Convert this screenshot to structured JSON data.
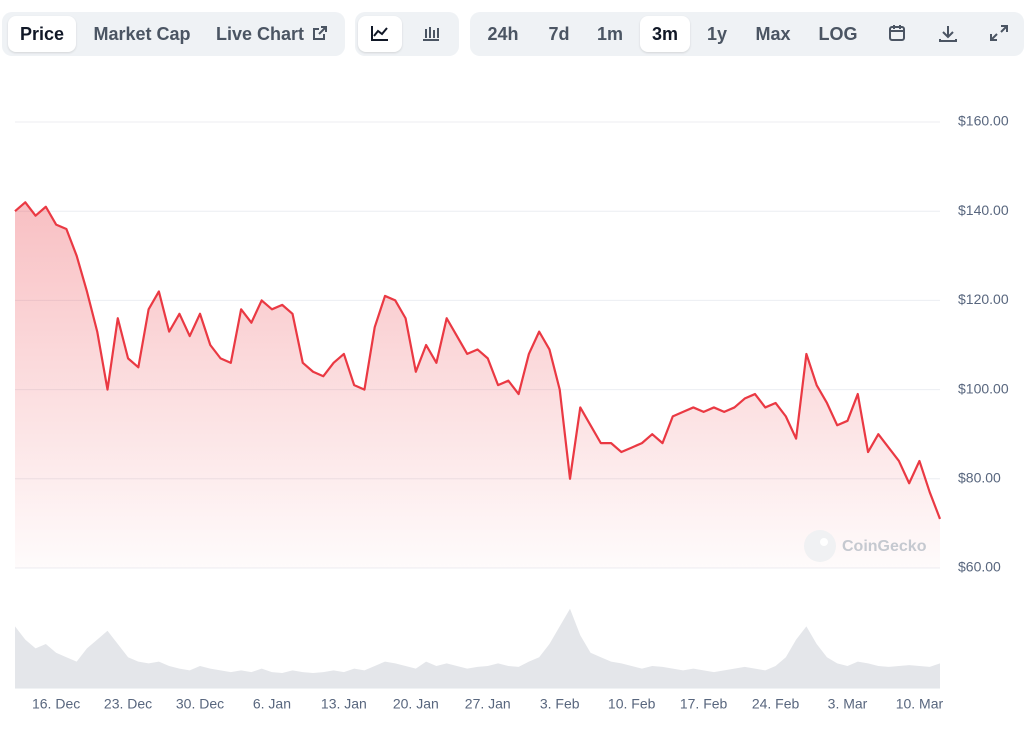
{
  "toolbar": {
    "tabs": [
      "Price",
      "Market Cap",
      "Live Chart"
    ],
    "ranges": [
      "24h",
      "7d",
      "1m",
      "3m",
      "1y",
      "Max",
      "LOG"
    ]
  },
  "watermark": "CoinGecko",
  "chart_data": {
    "type": "line",
    "categories": [
      null,
      null,
      null,
      null,
      "16. Dec",
      null,
      null,
      null,
      null,
      null,
      null,
      "23. Dec",
      null,
      null,
      null,
      null,
      null,
      null,
      "30. Dec",
      null,
      null,
      null,
      null,
      null,
      null,
      "6. Jan",
      null,
      null,
      null,
      null,
      null,
      null,
      "13. Jan",
      null,
      null,
      null,
      null,
      null,
      null,
      "20. Jan",
      null,
      null,
      null,
      null,
      null,
      null,
      "27. Jan",
      null,
      null,
      null,
      null,
      null,
      null,
      "3. Feb",
      null,
      null,
      null,
      null,
      null,
      null,
      "10. Feb",
      null,
      null,
      null,
      null,
      null,
      null,
      "17. Feb",
      null,
      null,
      null,
      null,
      null,
      null,
      "24. Feb",
      null,
      null,
      null,
      null,
      null,
      null,
      "3. Mar",
      null,
      null,
      null,
      null,
      null,
      null,
      "10. Mar",
      null,
      null
    ],
    "series": [
      {
        "name": "Price",
        "color": "#ea3943",
        "values": [
          140,
          142,
          139,
          141,
          137,
          136,
          130,
          122,
          113,
          100,
          116,
          107,
          105,
          118,
          122,
          113,
          117,
          112,
          117,
          110,
          107,
          106,
          118,
          115,
          120,
          118,
          119,
          117,
          106,
          104,
          103,
          106,
          108,
          101,
          100,
          114,
          121,
          120,
          116,
          104,
          110,
          106,
          116,
          112,
          108,
          109,
          107,
          101,
          102,
          99,
          108,
          113,
          109,
          100,
          80,
          96,
          92,
          88,
          88,
          86,
          87,
          88,
          90,
          88,
          94,
          95,
          96,
          95,
          96,
          95,
          96,
          98,
          99,
          96,
          97,
          94,
          89,
          108,
          101,
          97,
          92,
          93,
          99,
          86,
          90,
          87,
          84,
          79,
          84,
          77,
          71
        ]
      }
    ],
    "volume": {
      "color": "#e4e6ea",
      "y2lim": [
        0,
        100
      ],
      "values": [
        70,
        55,
        45,
        50,
        40,
        35,
        30,
        45,
        55,
        65,
        50,
        35,
        30,
        28,
        30,
        25,
        22,
        20,
        25,
        22,
        20,
        18,
        20,
        18,
        22,
        18,
        17,
        20,
        18,
        17,
        18,
        20,
        18,
        22,
        20,
        25,
        30,
        28,
        25,
        22,
        30,
        25,
        28,
        25,
        22,
        24,
        25,
        28,
        25,
        24,
        30,
        35,
        50,
        70,
        90,
        60,
        40,
        35,
        30,
        28,
        25,
        22,
        25,
        24,
        22,
        20,
        22,
        20,
        18,
        20,
        22,
        24,
        22,
        20,
        25,
        35,
        55,
        70,
        50,
        35,
        28,
        25,
        30,
        28,
        25,
        24,
        25,
        26,
        25,
        24,
        28
      ]
    },
    "ylim": [
      60,
      160
    ],
    "yticks": [
      {
        "value": 60,
        "label": "$60.00"
      },
      {
        "value": 80,
        "label": "$80.00"
      },
      {
        "value": 100,
        "label": "$100.00"
      },
      {
        "value": 120,
        "label": "$120.00"
      },
      {
        "value": 140,
        "label": "$140.00"
      },
      {
        "value": 160,
        "label": "$160.00"
      }
    ],
    "grid": true
  }
}
